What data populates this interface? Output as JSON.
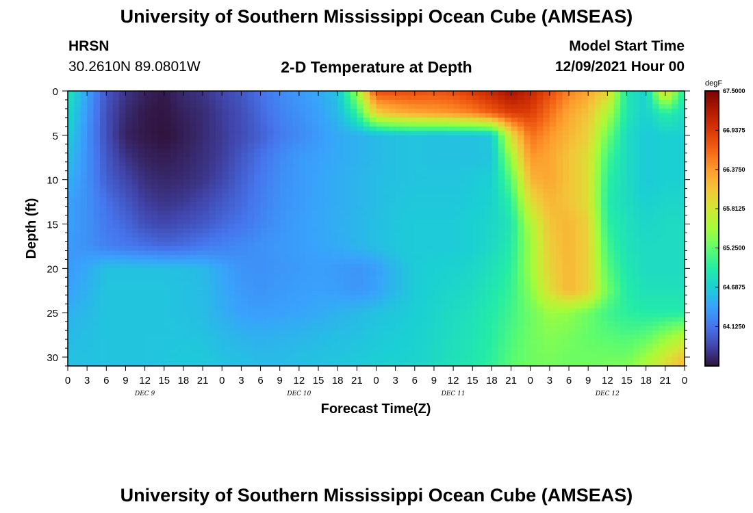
{
  "page": {
    "title": "University of Southern Mississippi Ocean Cube (AMSEAS)",
    "station": "HRSN",
    "coordinates": "30.2610N  89.0801W",
    "chart_subtitle": "2-D Temperature at Depth",
    "model_label": "Model Start Time",
    "model_start": "12/09/2021 Hour 00",
    "footer_title": "University of Southern Mississippi Ocean Cube (AMSEAS)"
  },
  "chart_data": {
    "type": "heatmap",
    "title": "2-D Temperature at Depth",
    "xlabel": "Forecast Time(Z)",
    "ylabel": "Depth (ft)",
    "colorbar_unit": "degF",
    "colorbar_ticks": [
      "67.5000",
      "66.9375",
      "66.3750",
      "65.8125",
      "65.2500",
      "64.6875",
      "64.1250"
    ],
    "colorbar_values": [
      67.5,
      66.9375,
      66.375,
      65.8125,
      65.25,
      64.6875,
      64.125
    ],
    "color_range": [
      63.56,
      67.5
    ],
    "colormap": [
      "#30123b",
      "#4145ab",
      "#4675ed",
      "#39a2fc",
      "#1bcfd4",
      "#24eca6",
      "#61fc6c",
      "#a4fc3b",
      "#d1e834",
      "#f3c63a",
      "#fe9b2d",
      "#f36315",
      "#d93806",
      "#b11901",
      "#7a0402"
    ],
    "x_hours_range": [
      0,
      96
    ],
    "x_tick_labels": [
      "0",
      "3",
      "6",
      "9",
      "12",
      "15",
      "18",
      "21",
      "0",
      "3",
      "6",
      "9",
      "12",
      "15",
      "18",
      "21",
      "0",
      "3",
      "6",
      "9",
      "12",
      "15",
      "18",
      "21",
      "0",
      "3",
      "6",
      "9",
      "12",
      "15",
      "18",
      "21",
      "0"
    ],
    "day_labels": [
      {
        "label": "DEC 9",
        "hour": 12
      },
      {
        "label": "DEC 10",
        "hour": 36
      },
      {
        "label": "DEC 11",
        "hour": 60
      },
      {
        "label": "DEC 12",
        "hour": 84
      }
    ],
    "y_range": [
      0,
      31
    ],
    "y_ticks": [
      0,
      5,
      10,
      15,
      20,
      25,
      30
    ],
    "depths": [
      0,
      2.5,
      5,
      7.5,
      10,
      12.5,
      15,
      17.5,
      20,
      22.5,
      25,
      27.5,
      30,
      31
    ],
    "times": [
      0,
      3,
      6,
      9,
      12,
      15,
      18,
      21,
      24,
      27,
      30,
      33,
      36,
      39,
      42,
      45,
      48,
      51,
      54,
      57,
      60,
      63,
      66,
      69,
      72,
      75,
      78,
      81,
      84,
      87,
      90,
      93,
      96
    ],
    "values": [
      [
        64.9,
        64.4,
        63.95,
        63.75,
        63.65,
        63.6,
        63.7,
        63.75,
        63.85,
        63.95,
        64.1,
        64.25,
        64.35,
        64.45,
        64.6,
        65.5,
        66.8,
        66.8,
        66.8,
        66.75,
        66.8,
        66.95,
        67.1,
        67.3,
        67.1,
        66.8,
        66.5,
        66.3,
        66.0,
        64.9,
        64.7,
        66.0,
        64.9
      ],
      [
        64.8,
        64.35,
        63.9,
        63.7,
        63.6,
        63.58,
        63.65,
        63.7,
        63.8,
        63.9,
        64.05,
        64.2,
        64.3,
        64.4,
        64.55,
        65.0,
        66.0,
        66.2,
        66.3,
        66.35,
        66.4,
        66.5,
        66.7,
        66.9,
        66.9,
        66.6,
        66.3,
        66.1,
        65.6,
        64.9,
        64.7,
        65.0,
        64.8
      ],
      [
        64.7,
        64.3,
        63.9,
        63.65,
        63.6,
        63.56,
        63.62,
        63.7,
        63.78,
        63.88,
        64.0,
        64.15,
        64.25,
        64.35,
        64.45,
        64.5,
        64.55,
        64.6,
        64.62,
        64.6,
        64.6,
        64.6,
        64.65,
        65.9,
        66.6,
        66.4,
        66.2,
        66.0,
        65.3,
        64.8,
        64.65,
        64.7,
        64.7
      ],
      [
        64.6,
        64.3,
        63.95,
        63.75,
        63.65,
        63.62,
        63.66,
        63.72,
        63.8,
        63.95,
        64.1,
        64.25,
        64.35,
        64.4,
        64.45,
        64.5,
        64.55,
        64.6,
        64.62,
        64.6,
        64.6,
        64.6,
        64.62,
        65.5,
        66.4,
        66.3,
        66.1,
        65.9,
        65.1,
        64.8,
        64.65,
        64.7,
        64.7
      ],
      [
        64.5,
        64.3,
        64.0,
        63.85,
        63.72,
        63.68,
        63.7,
        63.75,
        63.85,
        64.0,
        64.15,
        64.28,
        64.35,
        64.42,
        64.47,
        64.52,
        64.57,
        64.6,
        64.62,
        64.62,
        64.62,
        64.65,
        64.7,
        65.2,
        66.2,
        66.3,
        66.1,
        65.9,
        65.0,
        64.8,
        64.65,
        64.7,
        64.7
      ],
      [
        64.4,
        64.3,
        64.1,
        63.95,
        63.8,
        63.75,
        63.78,
        63.85,
        63.95,
        64.05,
        64.18,
        64.3,
        64.36,
        64.42,
        64.47,
        64.52,
        64.57,
        64.62,
        64.64,
        64.64,
        64.64,
        64.67,
        64.72,
        65.0,
        65.9,
        66.2,
        66.1,
        65.9,
        64.95,
        64.8,
        64.7,
        64.75,
        64.75
      ],
      [
        64.4,
        64.3,
        64.15,
        64.05,
        63.9,
        63.85,
        63.9,
        63.95,
        64.05,
        64.12,
        64.22,
        64.32,
        64.38,
        64.43,
        64.48,
        64.53,
        64.58,
        64.63,
        64.66,
        64.66,
        64.66,
        64.7,
        64.75,
        64.9,
        65.6,
        66.1,
        66.2,
        66.0,
        65.0,
        64.85,
        64.75,
        64.8,
        64.8
      ],
      [
        64.35,
        64.3,
        64.2,
        64.15,
        64.1,
        64.05,
        64.08,
        64.15,
        64.2,
        64.25,
        64.3,
        64.35,
        64.38,
        64.42,
        64.46,
        64.52,
        64.58,
        64.64,
        64.66,
        64.66,
        64.66,
        64.7,
        64.78,
        64.95,
        65.5,
        66.05,
        66.2,
        66.0,
        65.1,
        64.85,
        64.8,
        64.8,
        64.8
      ],
      [
        64.35,
        64.45,
        64.6,
        64.6,
        64.6,
        64.6,
        64.58,
        64.55,
        64.42,
        64.32,
        64.3,
        64.33,
        64.36,
        64.38,
        64.36,
        64.32,
        64.38,
        64.55,
        64.66,
        64.7,
        64.72,
        64.75,
        64.85,
        65.0,
        65.5,
        66.0,
        66.2,
        66.0,
        65.2,
        64.9,
        64.8,
        64.8,
        64.8
      ],
      [
        64.4,
        64.5,
        64.62,
        64.62,
        64.62,
        64.62,
        64.6,
        64.57,
        64.45,
        64.35,
        64.32,
        64.35,
        64.38,
        64.4,
        64.38,
        64.33,
        64.4,
        64.55,
        64.66,
        64.72,
        64.75,
        64.8,
        64.9,
        65.05,
        65.4,
        65.9,
        66.2,
        66.0,
        65.3,
        64.95,
        64.85,
        64.85,
        64.85
      ],
      [
        64.5,
        64.55,
        64.62,
        64.62,
        64.62,
        64.62,
        64.6,
        64.57,
        64.48,
        64.4,
        64.38,
        64.4,
        64.42,
        64.45,
        64.5,
        64.55,
        64.6,
        64.64,
        64.68,
        64.74,
        64.8,
        64.85,
        64.95,
        65.1,
        65.3,
        65.5,
        65.45,
        65.3,
        65.1,
        65.0,
        64.95,
        64.95,
        64.95
      ],
      [
        64.55,
        64.58,
        64.62,
        64.62,
        64.62,
        64.62,
        64.62,
        64.6,
        64.55,
        64.5,
        64.48,
        64.5,
        64.52,
        64.55,
        64.58,
        64.6,
        64.64,
        64.67,
        64.7,
        64.76,
        64.82,
        64.88,
        64.98,
        65.15,
        65.3,
        65.4,
        65.35,
        65.25,
        65.2,
        65.15,
        65.2,
        65.4,
        65.6
      ],
      [
        64.6,
        64.6,
        64.62,
        64.62,
        64.62,
        64.63,
        64.65,
        64.65,
        64.6,
        64.58,
        64.56,
        64.56,
        64.58,
        64.6,
        64.62,
        64.64,
        64.68,
        64.7,
        64.72,
        64.78,
        64.85,
        64.9,
        65.0,
        65.2,
        65.3,
        65.35,
        65.3,
        65.3,
        65.3,
        65.3,
        65.5,
        65.8,
        66.1
      ],
      [
        64.6,
        64.6,
        64.62,
        64.62,
        64.62,
        64.63,
        64.65,
        64.65,
        64.62,
        64.6,
        64.58,
        64.58,
        64.6,
        64.62,
        64.64,
        64.66,
        64.7,
        64.72,
        64.74,
        64.8,
        64.87,
        64.92,
        65.02,
        65.2,
        65.3,
        65.35,
        65.3,
        65.3,
        65.35,
        65.4,
        65.6,
        65.9,
        66.2
      ]
    ]
  }
}
